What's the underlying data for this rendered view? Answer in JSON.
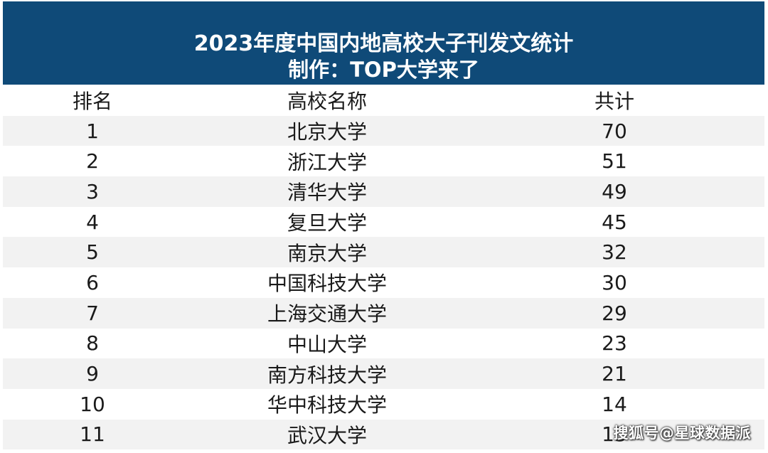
{
  "header": {
    "title": "2023年度中国内地高校大子刊发文统计",
    "subtitle": "制作：TOP大学来了"
  },
  "table": {
    "columns": [
      "排名",
      "高校名称",
      "共计"
    ],
    "rows": [
      {
        "rank": "1",
        "name": "北京大学",
        "total": "70"
      },
      {
        "rank": "2",
        "name": "浙江大学",
        "total": "51"
      },
      {
        "rank": "3",
        "name": "清华大学",
        "total": "49"
      },
      {
        "rank": "4",
        "name": "复旦大学",
        "total": "45"
      },
      {
        "rank": "5",
        "name": "南京大学",
        "total": "32"
      },
      {
        "rank": "6",
        "name": "中国科技大学",
        "total": "30"
      },
      {
        "rank": "7",
        "name": "上海交通大学",
        "total": "29"
      },
      {
        "rank": "8",
        "name": "中山大学",
        "total": "23"
      },
      {
        "rank": "9",
        "name": "南方科技大学",
        "total": "21"
      },
      {
        "rank": "10",
        "name": "华中科技大学",
        "total": "14"
      },
      {
        "rank": "11",
        "name": "武汉大学",
        "total": "13"
      }
    ]
  },
  "watermark": "搜狐号@星球数据派",
  "colors": {
    "header_bg": "#0f4a78",
    "header_text": "#ffffff",
    "row_alt_bg": "#f2f2f2",
    "text": "#1a1a1a"
  }
}
